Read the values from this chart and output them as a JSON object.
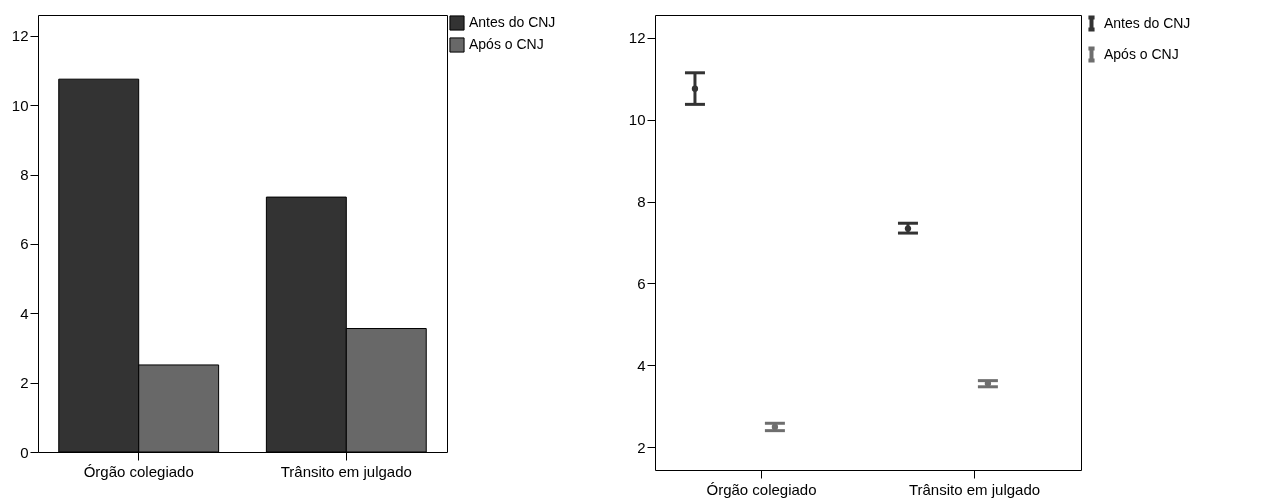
{
  "chart_data": [
    {
      "type": "bar",
      "categories": [
        "Órgão colegiado",
        "Trânsito em julgado"
      ],
      "ylim": [
        0,
        12.6
      ],
      "yticks": [
        0,
        2,
        4,
        6,
        8,
        10,
        12
      ],
      "legend": "top right",
      "series": [
        {
          "name": "Antes do CNJ",
          "color": "#333333",
          "values": [
            10.75,
            7.35
          ]
        },
        {
          "name": "Após o CNJ",
          "color": "#686868",
          "values": [
            2.51,
            3.56
          ]
        }
      ]
    },
    {
      "type": "scatter",
      "categories": [
        "Órgão colegiado",
        "Trânsito em julgado"
      ],
      "ylim": [
        1.45,
        12.55
      ],
      "yticks": [
        2,
        4,
        6,
        8,
        10,
        12
      ],
      "legend": "top right",
      "marker": "circle",
      "series": [
        {
          "name": "Antes do CNJ",
          "color": "#333333",
          "values": [
            10.75,
            7.34
          ],
          "errors": [
            [
              10.37,
              11.14
            ],
            [
              7.23,
              7.47
            ]
          ]
        },
        {
          "name": "Após o CNJ",
          "color": "#6e6e6e",
          "values": [
            2.5,
            3.56
          ],
          "errors": [
            [
              2.41,
              2.59
            ],
            [
              3.48,
              3.63
            ]
          ]
        }
      ]
    }
  ]
}
